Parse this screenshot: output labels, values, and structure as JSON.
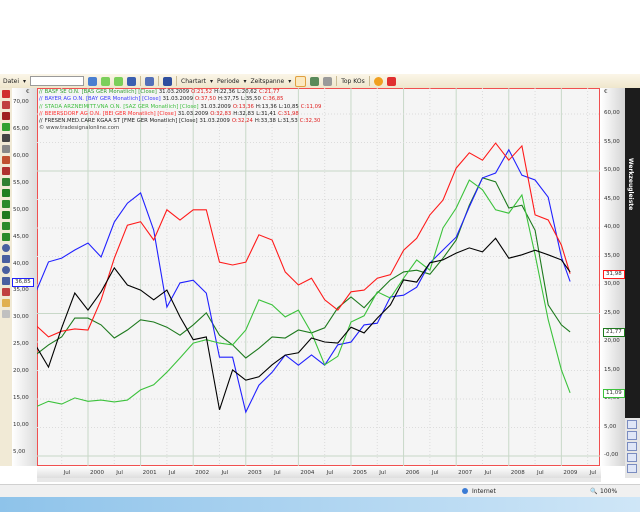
{
  "toolbar": {
    "file_menu": "Datei",
    "search_value": "",
    "chart_type_menu": "Chartart",
    "period_menu": "Periode",
    "timespan_menu": "Zeitspanne",
    "top_kos": "Top KOs"
  },
  "side_panel": {
    "title": "Werkzeugleiste"
  },
  "status_bar": {
    "zone": "Internet",
    "zoom": "100%"
  },
  "currency_symbol": "€",
  "watermark": "© www.tradesignalonline.com",
  "legend": [
    {
      "name": "BASF SE O.N.",
      "info": "[BAS GER  Monatlich] [Close]",
      "date": "31.03.2009",
      "o": "O:21,52",
      "h": "H:22,36",
      "l": "L:20,62",
      "c": "C:21,77",
      "color": "#2f9e2f"
    },
    {
      "name": "BAYER AG O.N.",
      "info": "[BAY GER  Monatlich] [Close]",
      "date": "31.03.2009",
      "o": "O:37,50",
      "h": "H:37,75",
      "l": "L:35,50",
      "c": "C:36,85",
      "color": "#3a3aff"
    },
    {
      "name": "STADA ARZNEIMITT.VNA O.N.",
      "info": "[SAZ GER  Monatlich] [Close]",
      "date": "31.03.2009",
      "o": "O:13,36",
      "h": "H:13,36",
      "l": "L:10,85",
      "c": "C:11,09",
      "color": "#3fbf3f"
    },
    {
      "name": "BEIERSDORF AG O.N.",
      "info": "[BEI GER  Monatlich] [Close]",
      "date": "31.03.2009",
      "o": "O:32,83",
      "h": "H:32,83",
      "l": "L:31,41",
      "c": "C:31,98",
      "color": "#ff3030"
    },
    {
      "name": "FRESEN.MED.CARE KGAA ST",
      "info": "[FME GER  Monatlich] [Close]",
      "date": "31.03.2009",
      "o": "O:32,24",
      "h": "H:33,38",
      "l": "L:31,53",
      "c": "C:32,30",
      "color": "#222222"
    }
  ],
  "chart_data": {
    "type": "line",
    "grid": true,
    "x": [
      "1999-01",
      "1999-04",
      "1999-07",
      "1999-10",
      "2000-01",
      "2000-04",
      "2000-07",
      "2000-10",
      "2001-01",
      "2001-04",
      "2001-07",
      "2001-10",
      "2002-01",
      "2002-04",
      "2002-07",
      "2002-10",
      "2003-01",
      "2003-04",
      "2003-07",
      "2003-10",
      "2004-01",
      "2004-04",
      "2004-07",
      "2004-10",
      "2005-01",
      "2005-04",
      "2005-07",
      "2005-10",
      "2006-01",
      "2006-04",
      "2006-07",
      "2006-10",
      "2007-01",
      "2007-04",
      "2007-07",
      "2007-10",
      "2008-01",
      "2008-04",
      "2008-07",
      "2008-10",
      "2009-01",
      "2009-03"
    ],
    "x_tick_labels": [
      "Jul",
      "2000",
      "Jul",
      "2001",
      "Jul",
      "2002",
      "Jul",
      "2003",
      "Jul",
      "2004",
      "Jul",
      "2005",
      "Jul",
      "2006",
      "Jul",
      "2007",
      "Jul",
      "2008",
      "Jul",
      "2009",
      "Jul"
    ],
    "left_axis": {
      "ylim": [
        2,
        72
      ],
      "tick_labels": [
        "70,00",
        "65,00",
        "60,00",
        "55,00",
        "50,00",
        "45,00",
        "40,00",
        "35,00",
        "30,00",
        "25,00",
        "20,00",
        "15,00",
        "10,00",
        "5,00"
      ]
    },
    "right_axis": {
      "ylim": [
        -1.7,
        64.6
      ],
      "tick_labels": [
        "60,00",
        "55,00",
        "50,00",
        "45,00",
        "40,00",
        "35,00",
        "30,00",
        "25,00",
        "20,00",
        "15,00",
        "10,00",
        "5,00",
        "-0,00"
      ]
    },
    "series": [
      {
        "name": "BASF SE O.N.",
        "axis": "right",
        "color": "#1e7a1e",
        "last_label": "21,77",
        "values": [
          17.7,
          19.5,
          20.9,
          24.2,
          24.2,
          23.0,
          20.7,
          22.1,
          23.9,
          23.5,
          22.6,
          21.2,
          23.0,
          25.1,
          21.2,
          19.5,
          17.2,
          18.9,
          20.9,
          20.7,
          22.1,
          21.6,
          22.5,
          26.0,
          27.9,
          26.0,
          28.6,
          30.9,
          32.3,
          32.6,
          31.9,
          34.7,
          37.9,
          44.0,
          48.8,
          48.1,
          43.5,
          44.0,
          39.6,
          26.5,
          23.0,
          21.77
        ]
      },
      {
        "name": "BAYER AG O.N.",
        "axis": "left",
        "color": "#2020ff",
        "last_label": "36,85",
        "values": [
          34.7,
          40.5,
          41.2,
          42.7,
          44.0,
          41.4,
          47.9,
          51.4,
          53.3,
          46.4,
          32.1,
          36.6,
          37.1,
          34.7,
          22.8,
          22.8,
          12.6,
          17.6,
          20.0,
          23.2,
          21.3,
          23.2,
          21.3,
          25.1,
          25.6,
          28.8,
          29.1,
          34.0,
          34.3,
          35.8,
          40.3,
          42.7,
          45.1,
          50.7,
          56.1,
          57.0,
          61.3,
          56.6,
          55.7,
          52.5,
          41.4,
          36.85
        ]
      },
      {
        "name": "STADA ARZNEIMITT.VNA O.N.",
        "axis": "right",
        "color": "#3cc23c",
        "last_label": "11,09",
        "values": [
          8.6,
          9.6,
          9.1,
          10.2,
          9.6,
          9.8,
          9.5,
          9.8,
          11.6,
          12.5,
          14.7,
          17.2,
          19.8,
          20.4,
          19.8,
          19.5,
          22.1,
          27.4,
          26.5,
          24.4,
          25.6,
          21.6,
          16.0,
          17.5,
          23.5,
          24.6,
          28.8,
          27.7,
          31.2,
          34.4,
          32.6,
          40.0,
          43.5,
          48.4,
          46.7,
          43.2,
          42.6,
          45.8,
          35.3,
          23.9,
          15.1,
          11.09
        ]
      },
      {
        "name": "BEIERSDORF AG O.N.",
        "axis": "right",
        "color": "#ff1a1a",
        "last_label": "31,98",
        "values": [
          23.0,
          20.9,
          21.9,
          22.3,
          22.1,
          27.4,
          34.7,
          40.5,
          41.1,
          37.9,
          43.2,
          41.4,
          43.2,
          43.2,
          34.0,
          33.5,
          34.0,
          38.8,
          37.9,
          32.3,
          30.0,
          31.2,
          27.4,
          25.6,
          28.8,
          29.1,
          31.2,
          31.8,
          36.1,
          38.2,
          42.3,
          44.9,
          50.5,
          53.2,
          51.9,
          54.9,
          51.9,
          54.4,
          42.3,
          41.4,
          37.0,
          31.98
        ]
      },
      {
        "name": "FRESEN.MED.CARE KGAA ST",
        "axis": "right",
        "color": "#000000",
        "last_label": "32,30",
        "values": [
          19.5,
          15.6,
          22.5,
          28.6,
          25.6,
          28.8,
          33.0,
          30.0,
          29.1,
          27.4,
          29.1,
          24.4,
          20.4,
          20.9,
          8.1,
          15.1,
          13.3,
          13.9,
          16.0,
          17.7,
          18.1,
          20.7,
          20.0,
          19.8,
          22.6,
          21.6,
          24.2,
          26.5,
          30.9,
          30.5,
          33.9,
          34.4,
          35.6,
          36.5,
          35.8,
          38.2,
          34.7,
          35.3,
          36.1,
          35.3,
          34.4,
          32.3
        ]
      }
    ]
  }
}
